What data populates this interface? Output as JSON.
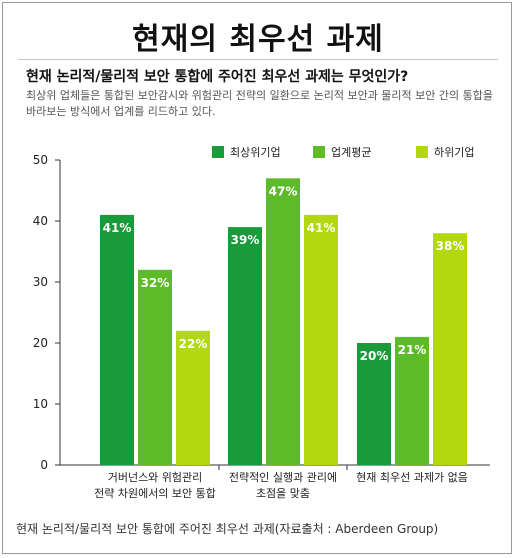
{
  "title": "현재의 최우선 과제",
  "subtitle": "현재 논리적/물리적 보안 통합에 주어진 최우선 과제는 무엇인가?",
  "description": "최상위 업체들은 통합된 보안감시와 위험관리 전략의 일환으로 논리적 보안과 물리적 보안 간의 통합을 바라보는 방식에서 업계를 리드하고 있다.",
  "footer": "현재 논리적/물리적 보안 통합에 주어진 최우선 과제(자료출처 : Aberdeen Group)",
  "chart_data": {
    "type": "bar",
    "categories": [
      [
        "거버넌스와 위험관리",
        "전략 차원에서의 보안 통합"
      ],
      [
        "전략적인 실행과 관리에",
        "초점을 맞춤"
      ],
      [
        "현재 최우선 과제가 없음"
      ]
    ],
    "series": [
      {
        "name": "최상위기업",
        "color": "#1a9a3a",
        "values": [
          41,
          39,
          20
        ]
      },
      {
        "name": "업계평균",
        "color": "#5dbb2a",
        "values": [
          32,
          47,
          21
        ]
      },
      {
        "name": "하위기업",
        "color": "#b3d80f",
        "values": [
          22,
          41,
          38
        ]
      }
    ],
    "value_suffix": "%",
    "ylim": [
      0,
      50
    ],
    "yticks": [
      0,
      10,
      20,
      30,
      40,
      50
    ],
    "legend": "top-right",
    "grid": false
  }
}
